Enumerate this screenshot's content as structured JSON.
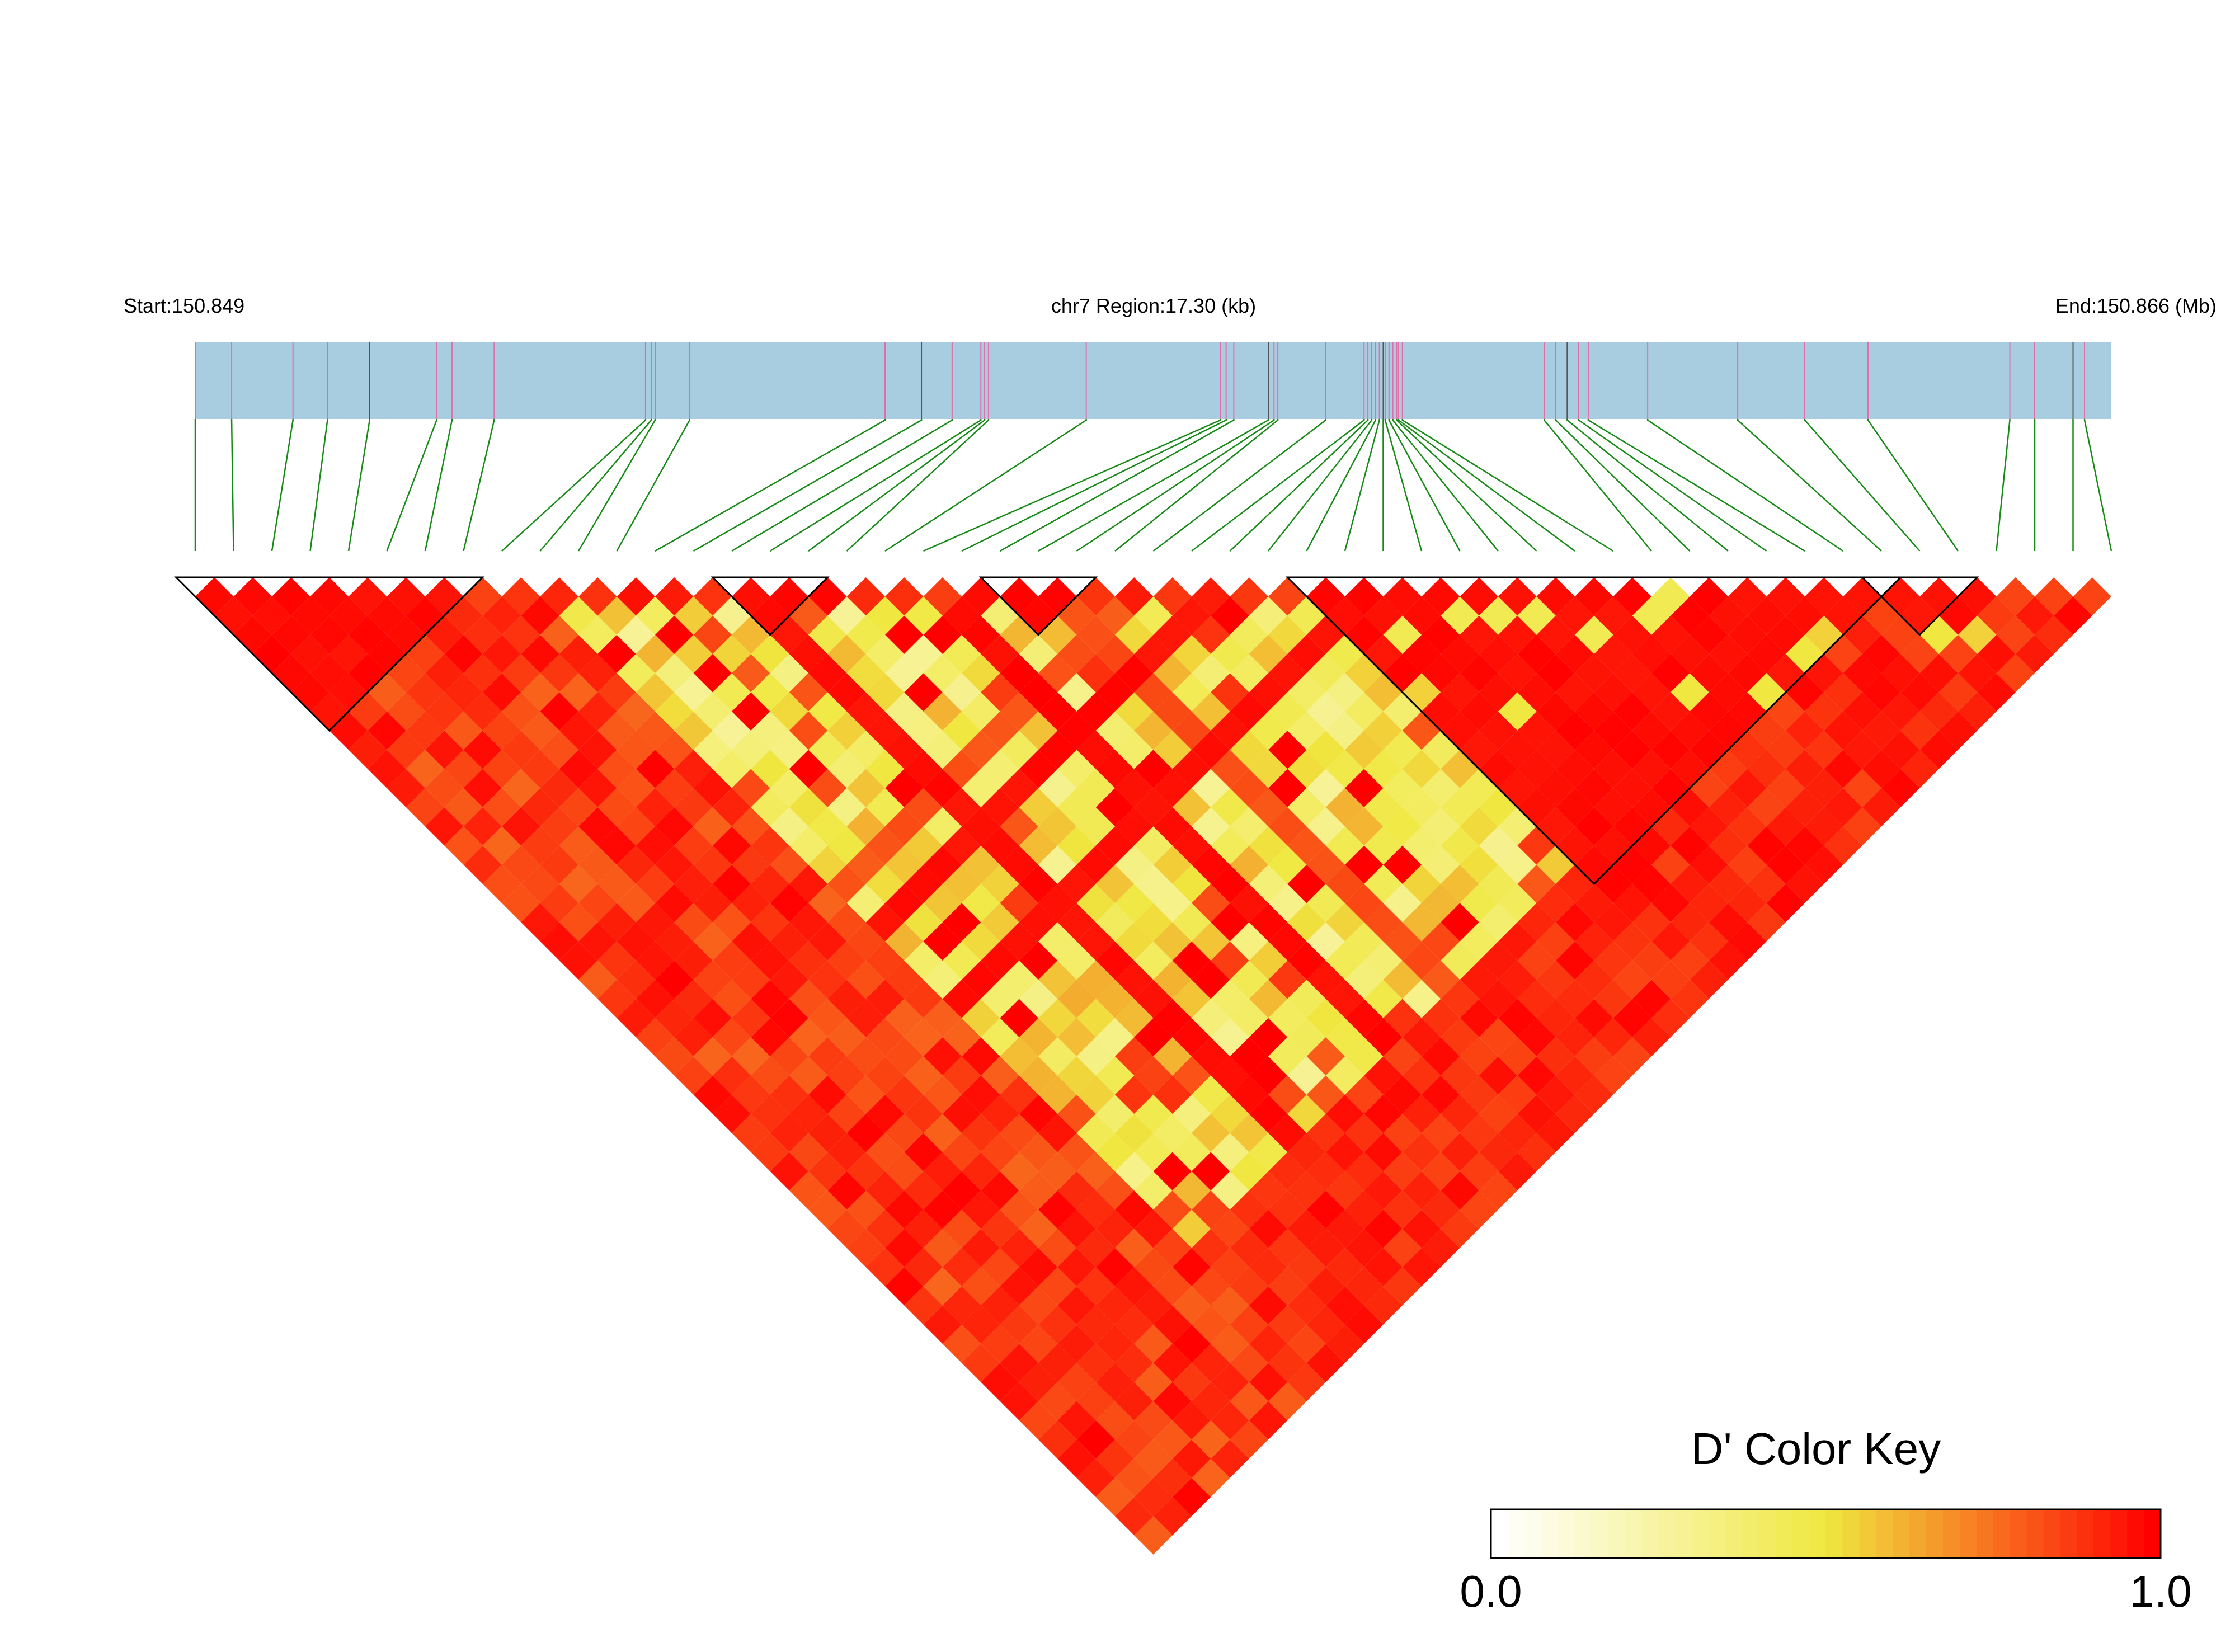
{
  "header": {
    "start_label": "Start:150.849",
    "region_label": "chr7 Region:17.30 (kb)",
    "end_label": "End:150.866 (Mb)"
  },
  "colors": {
    "track_fill": "#a8cde0",
    "snp_tick_pink": "#e06fa8",
    "snp_tick_dark": "#555555",
    "connector_green": "#178a17",
    "block_outline": "#000000",
    "ld_low": "#ffffff",
    "ld_mid": "#f0e840",
    "ld_high": "#ff0000"
  },
  "color_key": {
    "title": "D' Color Key",
    "min_label": "0.0",
    "max_label": "1.0",
    "steps": 40
  },
  "chart_data": {
    "type": "heatmap",
    "subtype": "ld-triangle",
    "metric": "D'",
    "region": "chr7",
    "start_mb": 150.849,
    "end_mb": 150.866,
    "region_kb": 17.3,
    "snp_count": 51,
    "value_range": [
      0,
      1
    ],
    "snp_positions_fraction": [
      0.0,
      0.019,
      0.051,
      0.069,
      0.091,
      0.126,
      0.134,
      0.156,
      0.235,
      0.238,
      0.24,
      0.258,
      0.36,
      0.379,
      0.395,
      0.41,
      0.412,
      0.414,
      0.465,
      0.535,
      0.538,
      0.542,
      0.56,
      0.563,
      0.565,
      0.59,
      0.61,
      0.612,
      0.614,
      0.616,
      0.618,
      0.62,
      0.621,
      0.623,
      0.625,
      0.627,
      0.628,
      0.63,
      0.704,
      0.71,
      0.716,
      0.722,
      0.727,
      0.758,
      0.805,
      0.84,
      0.873,
      0.947,
      0.96,
      0.98,
      0.986
    ],
    "ld_blocks": [
      [
        0,
        7
      ],
      [
        14,
        16
      ],
      [
        21,
        23
      ],
      [
        29,
        44
      ],
      [
        44,
        46
      ]
    ],
    "low_ld_region": {
      "row_min": 9,
      "row_max": 28,
      "col_min": 8,
      "col_max": 33,
      "base_value": 0.18
    },
    "highlight_cells": [
      {
        "i": 30,
        "j": 33,
        "d": 0.45
      },
      {
        "i": 32,
        "j": 34,
        "d": 0.45
      },
      {
        "i": 33,
        "j": 35,
        "d": 0.45
      },
      {
        "i": 34,
        "j": 36,
        "d": 0.45
      },
      {
        "i": 37,
        "j": 39,
        "d": 0.45
      },
      {
        "i": 38,
        "j": 39,
        "d": 0.45
      },
      {
        "i": 35,
        "j": 38,
        "d": 0.45
      },
      {
        "i": 28,
        "j": 30,
        "d": 0.45
      },
      {
        "i": 29,
        "j": 35,
        "d": 0.55
      },
      {
        "i": 31,
        "j": 38,
        "d": 0.5
      },
      {
        "i": 40,
        "j": 44,
        "d": 0.5
      },
      {
        "i": 36,
        "j": 42,
        "d": 0.5
      },
      {
        "i": 41,
        "j": 44,
        "d": 0.55
      },
      {
        "i": 44,
        "j": 47,
        "d": 0.5
      },
      {
        "i": 45,
        "j": 48,
        "d": 0.55
      },
      {
        "i": 38,
        "j": 44,
        "d": 0.5
      }
    ],
    "strong_diagonals_in_low_region": [
      {
        "row": 14,
        "value": 1.0
      },
      {
        "row": 19,
        "value": 1.0
      },
      {
        "col": 27,
        "value": 1.0
      },
      {
        "col": 31,
        "value": 1.0
      },
      {
        "row": 22,
        "value": 0.85
      },
      {
        "col": 25,
        "value": 0.85
      }
    ]
  }
}
